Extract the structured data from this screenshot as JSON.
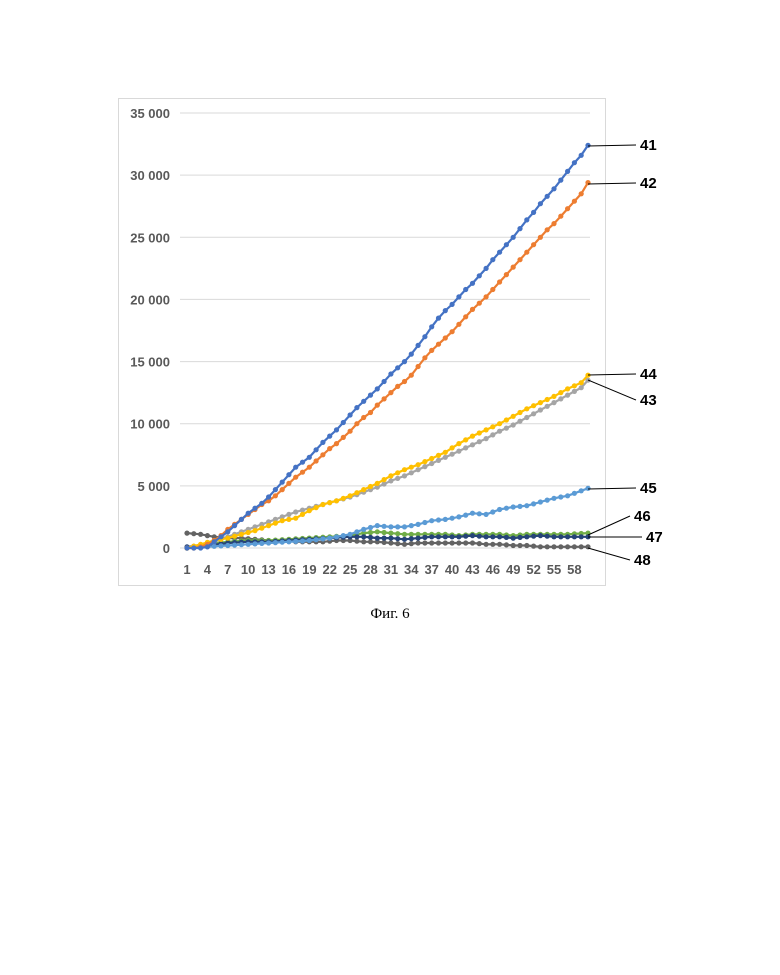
{
  "caption": "Фиг. 6",
  "chart_data": {
    "type": "line",
    "title": "",
    "xlabel": "",
    "ylabel": "",
    "ylim": [
      0,
      35000
    ],
    "y_ticks": [
      0,
      5000,
      10000,
      15000,
      20000,
      25000,
      30000,
      35000
    ],
    "y_tick_labels": [
      "0",
      "5 000",
      "10 000",
      "15 000",
      "20 000",
      "25 000",
      "30 000",
      "35 000"
    ],
    "x_range": [
      1,
      60
    ],
    "x_tick_labels": [
      "1",
      "4",
      "7",
      "10",
      "13",
      "16",
      "19",
      "22",
      "25",
      "28",
      "31",
      "34",
      "37",
      "40",
      "43",
      "46",
      "49",
      "52",
      "55",
      "58"
    ],
    "grid": "horizontal",
    "legend": "none",
    "series": [
      {
        "name": "41",
        "color": "#4472c4",
        "marker": true,
        "anchors": [
          [
            1,
            0
          ],
          [
            2,
            0
          ],
          [
            3,
            0
          ],
          [
            4,
            100
          ],
          [
            5,
            500
          ],
          [
            6,
            900
          ],
          [
            7,
            1300
          ],
          [
            8,
            1800
          ],
          [
            9,
            2300
          ],
          [
            10,
            2800
          ],
          [
            11,
            3200
          ],
          [
            12,
            3600
          ],
          [
            13,
            4100
          ],
          [
            14,
            4700
          ],
          [
            15,
            5300
          ],
          [
            16,
            5900
          ],
          [
            17,
            6500
          ],
          [
            18,
            6900
          ],
          [
            19,
            7300
          ],
          [
            20,
            7900
          ],
          [
            21,
            8500
          ],
          [
            22,
            9000
          ],
          [
            23,
            9500
          ],
          [
            24,
            10100
          ],
          [
            25,
            10700
          ],
          [
            26,
            11300
          ],
          [
            27,
            11800
          ],
          [
            28,
            12300
          ],
          [
            29,
            12800
          ],
          [
            30,
            13400
          ],
          [
            31,
            14000
          ],
          [
            32,
            14500
          ],
          [
            33,
            15000
          ],
          [
            34,
            15600
          ],
          [
            35,
            16300
          ],
          [
            36,
            17000
          ],
          [
            37,
            17800
          ],
          [
            38,
            18500
          ],
          [
            39,
            19100
          ],
          [
            40,
            19600
          ],
          [
            41,
            20200
          ],
          [
            42,
            20800
          ],
          [
            43,
            21300
          ],
          [
            44,
            21900
          ],
          [
            45,
            22500
          ],
          [
            46,
            23200
          ],
          [
            47,
            23800
          ],
          [
            48,
            24400
          ],
          [
            49,
            25000
          ],
          [
            50,
            25700
          ],
          [
            51,
            26400
          ],
          [
            52,
            27000
          ],
          [
            53,
            27700
          ],
          [
            54,
            28300
          ],
          [
            55,
            28900
          ],
          [
            56,
            29600
          ],
          [
            57,
            30300
          ],
          [
            58,
            31000
          ],
          [
            59,
            31600
          ],
          [
            60,
            32400
          ]
        ]
      },
      {
        "name": "42",
        "color": "#ed7d31",
        "marker": true,
        "anchors": [
          [
            1,
            0
          ],
          [
            2,
            0
          ],
          [
            3,
            100
          ],
          [
            4,
            300
          ],
          [
            5,
            600
          ],
          [
            6,
            1000
          ],
          [
            7,
            1500
          ],
          [
            8,
            1900
          ],
          [
            9,
            2300
          ],
          [
            10,
            2700
          ],
          [
            11,
            3100
          ],
          [
            12,
            3500
          ],
          [
            13,
            3800
          ],
          [
            14,
            4200
          ],
          [
            15,
            4700
          ],
          [
            16,
            5200
          ],
          [
            17,
            5700
          ],
          [
            18,
            6100
          ],
          [
            19,
            6500
          ],
          [
            20,
            7000
          ],
          [
            21,
            7500
          ],
          [
            22,
            8000
          ],
          [
            23,
            8400
          ],
          [
            24,
            8900
          ],
          [
            25,
            9400
          ],
          [
            26,
            10000
          ],
          [
            27,
            10500
          ],
          [
            28,
            10900
          ],
          [
            29,
            11500
          ],
          [
            30,
            12000
          ],
          [
            31,
            12500
          ],
          [
            32,
            13000
          ],
          [
            33,
            13400
          ],
          [
            34,
            13900
          ],
          [
            35,
            14600
          ],
          [
            36,
            15300
          ],
          [
            37,
            15900
          ],
          [
            38,
            16400
          ],
          [
            39,
            16900
          ],
          [
            40,
            17400
          ],
          [
            41,
            18000
          ],
          [
            42,
            18600
          ],
          [
            43,
            19200
          ],
          [
            44,
            19700
          ],
          [
            45,
            20200
          ],
          [
            46,
            20800
          ],
          [
            47,
            21400
          ],
          [
            48,
            22000
          ],
          [
            49,
            22600
          ],
          [
            50,
            23200
          ],
          [
            51,
            23800
          ],
          [
            52,
            24400
          ],
          [
            53,
            25000
          ],
          [
            54,
            25600
          ],
          [
            55,
            26100
          ],
          [
            56,
            26700
          ],
          [
            57,
            27300
          ],
          [
            58,
            27900
          ],
          [
            59,
            28500
          ],
          [
            60,
            29400
          ]
        ]
      },
      {
        "name": "43",
        "color": "#a5a5a5",
        "marker": true,
        "anchors": [
          [
            1,
            0
          ],
          [
            3,
            200
          ],
          [
            5,
            500
          ],
          [
            7,
            900
          ],
          [
            9,
            1300
          ],
          [
            11,
            1700
          ],
          [
            13,
            2100
          ],
          [
            15,
            2500
          ],
          [
            17,
            2900
          ],
          [
            19,
            3200
          ],
          [
            21,
            3500
          ],
          [
            23,
            3800
          ],
          [
            25,
            4100
          ],
          [
            27,
            4500
          ],
          [
            29,
            4900
          ],
          [
            31,
            5400
          ],
          [
            33,
            5800
          ],
          [
            35,
            6300
          ],
          [
            37,
            6800
          ],
          [
            39,
            7300
          ],
          [
            41,
            7800
          ],
          [
            43,
            8300
          ],
          [
            45,
            8800
          ],
          [
            47,
            9400
          ],
          [
            49,
            9900
          ],
          [
            51,
            10500
          ],
          [
            53,
            11100
          ],
          [
            55,
            11700
          ],
          [
            57,
            12300
          ],
          [
            59,
            12900
          ],
          [
            60,
            13500
          ]
        ]
      },
      {
        "name": "44",
        "color": "#ffc000",
        "marker": true,
        "anchors": [
          [
            1,
            0
          ],
          [
            3,
            300
          ],
          [
            5,
            600
          ],
          [
            7,
            800
          ],
          [
            9,
            1100
          ],
          [
            11,
            1400
          ],
          [
            13,
            1800
          ],
          [
            15,
            2200
          ],
          [
            17,
            2400
          ],
          [
            19,
            3000
          ],
          [
            21,
            3500
          ],
          [
            23,
            3800
          ],
          [
            25,
            4200
          ],
          [
            27,
            4700
          ],
          [
            29,
            5200
          ],
          [
            31,
            5800
          ],
          [
            33,
            6300
          ],
          [
            35,
            6700
          ],
          [
            37,
            7200
          ],
          [
            39,
            7700
          ],
          [
            41,
            8400
          ],
          [
            43,
            9000
          ],
          [
            45,
            9500
          ],
          [
            47,
            10000
          ],
          [
            49,
            10600
          ],
          [
            51,
            11200
          ],
          [
            53,
            11700
          ],
          [
            55,
            12200
          ],
          [
            57,
            12800
          ],
          [
            59,
            13300
          ],
          [
            60,
            13900
          ]
        ]
      },
      {
        "name": "45",
        "color": "#5b9bd5",
        "marker": true,
        "anchors": [
          [
            1,
            0
          ],
          [
            4,
            100
          ],
          [
            7,
            200
          ],
          [
            10,
            300
          ],
          [
            13,
            400
          ],
          [
            16,
            500
          ],
          [
            19,
            600
          ],
          [
            22,
            800
          ],
          [
            25,
            1100
          ],
          [
            27,
            1500
          ],
          [
            29,
            1800
          ],
          [
            31,
            1700
          ],
          [
            33,
            1700
          ],
          [
            35,
            1900
          ],
          [
            37,
            2200
          ],
          [
            39,
            2300
          ],
          [
            41,
            2500
          ],
          [
            43,
            2800
          ],
          [
            45,
            2700
          ],
          [
            47,
            3100
          ],
          [
            49,
            3300
          ],
          [
            51,
            3400
          ],
          [
            53,
            3700
          ],
          [
            55,
            4000
          ],
          [
            57,
            4200
          ],
          [
            60,
            4800
          ]
        ]
      },
      {
        "name": "46",
        "color": "#70ad47",
        "marker": true,
        "anchors": [
          [
            1,
            0
          ],
          [
            4,
            300
          ],
          [
            7,
            500
          ],
          [
            10,
            600
          ],
          [
            13,
            600
          ],
          [
            16,
            700
          ],
          [
            19,
            800
          ],
          [
            22,
            900
          ],
          [
            25,
            1000
          ],
          [
            27,
            1200
          ],
          [
            29,
            1300
          ],
          [
            31,
            1200
          ],
          [
            33,
            1100
          ],
          [
            35,
            1100
          ],
          [
            37,
            1100
          ],
          [
            39,
            1100
          ],
          [
            41,
            1000
          ],
          [
            43,
            1100
          ],
          [
            45,
            1100
          ],
          [
            47,
            1100
          ],
          [
            49,
            1000
          ],
          [
            51,
            1100
          ],
          [
            53,
            1100
          ],
          [
            55,
            1100
          ],
          [
            57,
            1100
          ],
          [
            60,
            1200
          ]
        ]
      },
      {
        "name": "47",
        "color": "#264478",
        "marker": true,
        "anchors": [
          [
            1,
            100
          ],
          [
            4,
            200
          ],
          [
            7,
            400
          ],
          [
            10,
            500
          ],
          [
            13,
            500
          ],
          [
            16,
            600
          ],
          [
            19,
            700
          ],
          [
            22,
            800
          ],
          [
            25,
            900
          ],
          [
            27,
            900
          ],
          [
            29,
            800
          ],
          [
            31,
            800
          ],
          [
            33,
            700
          ],
          [
            35,
            800
          ],
          [
            37,
            900
          ],
          [
            39,
            900
          ],
          [
            41,
            900
          ],
          [
            43,
            1000
          ],
          [
            45,
            900
          ],
          [
            47,
            900
          ],
          [
            49,
            800
          ],
          [
            51,
            900
          ],
          [
            53,
            1000
          ],
          [
            55,
            900
          ],
          [
            57,
            900
          ],
          [
            60,
            900
          ]
        ]
      },
      {
        "name": "48",
        "color": "#636363",
        "marker": true,
        "anchors": [
          [
            1,
            1200
          ],
          [
            3,
            1100
          ],
          [
            5,
            900
          ],
          [
            7,
            800
          ],
          [
            9,
            800
          ],
          [
            11,
            700
          ],
          [
            13,
            600
          ],
          [
            15,
            600
          ],
          [
            17,
            500
          ],
          [
            19,
            500
          ],
          [
            21,
            500
          ],
          [
            23,
            600
          ],
          [
            25,
            600
          ],
          [
            27,
            500
          ],
          [
            29,
            500
          ],
          [
            31,
            400
          ],
          [
            33,
            300
          ],
          [
            35,
            400
          ],
          [
            37,
            400
          ],
          [
            39,
            400
          ],
          [
            41,
            400
          ],
          [
            43,
            400
          ],
          [
            45,
            300
          ],
          [
            47,
            300
          ],
          [
            49,
            200
          ],
          [
            51,
            200
          ],
          [
            53,
            100
          ],
          [
            55,
            100
          ],
          [
            57,
            100
          ],
          [
            60,
            100
          ]
        ]
      }
    ],
    "callouts": [
      "41",
      "42",
      "44",
      "43",
      "45",
      "46",
      "47",
      "48"
    ]
  }
}
